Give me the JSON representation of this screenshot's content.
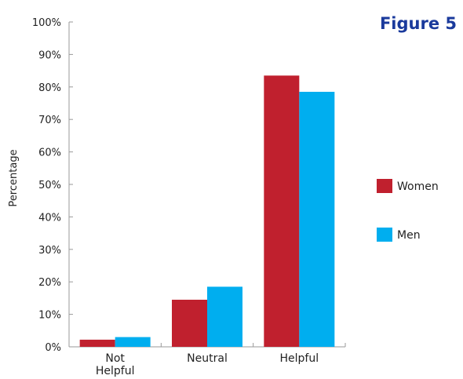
{
  "figure_label": "Figure 5",
  "colors": {
    "women": "#c0202e",
    "men": "#00aeef",
    "title": "#1a3a9c",
    "axis": "#9a9a9a"
  },
  "chart_data": {
    "type": "bar",
    "title": "Figure 5",
    "xlabel": "",
    "ylabel": "Percentage",
    "ylim": [
      0,
      100
    ],
    "yticks": [
      "0%",
      "10%",
      "20%",
      "30%",
      "40%",
      "50%",
      "60%",
      "70%",
      "80%",
      "90%",
      "100%"
    ],
    "categories": [
      [
        "Not",
        "Helpful"
      ],
      [
        "Neutral"
      ],
      [
        "Helpful"
      ]
    ],
    "series": [
      {
        "name": "Women",
        "values": [
          2.2,
          14.5,
          83.5
        ]
      },
      {
        "name": "Men",
        "values": [
          3.0,
          18.5,
          78.5
        ]
      }
    ],
    "legend": "right",
    "grid": false
  }
}
